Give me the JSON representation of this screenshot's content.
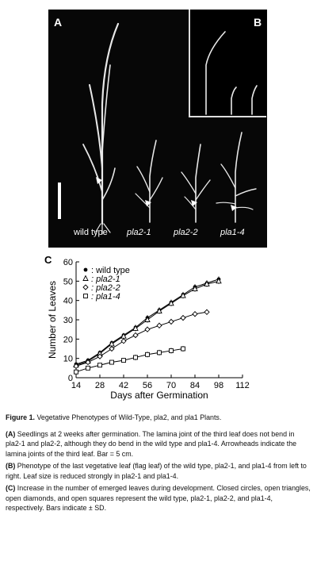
{
  "figure": {
    "panel_a_label": "A",
    "panel_b_label": "B",
    "panel_c_label": "C",
    "photo_labels": [
      "wild type",
      "pla2-1",
      "pla2-2",
      "pla1-4"
    ]
  },
  "chart_data": {
    "type": "line",
    "xlabel": "Days after Germination",
    "ylabel": "Number of Leaves",
    "xlim": [
      14,
      112
    ],
    "ylim": [
      0,
      60
    ],
    "xticks": [
      14,
      28,
      42,
      56,
      70,
      84,
      98,
      112
    ],
    "yticks": [
      0,
      10,
      20,
      30,
      40,
      50,
      60
    ],
    "legend_position": "top-left",
    "series": [
      {
        "name": "wild type",
        "marker": "filled-circle",
        "x": [
          14,
          21,
          28,
          35,
          42,
          49,
          56,
          63,
          70,
          77,
          84,
          91,
          98
        ],
        "y": [
          7,
          9,
          13,
          18,
          22,
          26,
          31,
          35,
          39,
          43,
          47,
          49,
          51
        ]
      },
      {
        "name": "pla2-1",
        "marker": "open-triangle",
        "x": [
          14,
          21,
          28,
          35,
          42,
          49,
          56,
          63,
          70,
          77,
          84,
          91,
          98
        ],
        "y": [
          6.5,
          8.5,
          12.5,
          17.5,
          21.5,
          25.5,
          30,
          34.5,
          38.5,
          42.5,
          46,
          48.5,
          50
        ]
      },
      {
        "name": "pla2-2",
        "marker": "open-diamond",
        "x": [
          14,
          21,
          28,
          35,
          42,
          49,
          56,
          63,
          70,
          77,
          84,
          91
        ],
        "y": [
          6,
          8,
          11,
          15,
          19,
          22,
          25,
          27,
          29,
          31,
          33,
          34
        ]
      },
      {
        "name": "pla1-4",
        "marker": "open-square",
        "x": [
          14,
          21,
          28,
          35,
          42,
          49,
          56,
          63,
          70,
          77
        ],
        "y": [
          3,
          5,
          6.5,
          8,
          9,
          10.5,
          12,
          13,
          14,
          15
        ]
      }
    ]
  },
  "caption": {
    "title_bold": "Figure 1.",
    "title_rest": "Vegetative Phenotypes of Wild-Type, pla2, and pla1 Plants.",
    "a_label": "(A)",
    "a_text": "Seedlings at 2 weeks after germination. The lamina joint of the third leaf does not bend in pla2-1 and pla2-2, although they do bend in the wild type and pla1-4. Arrowheads indicate the lamina joints of the third leaf. Bar = 5 cm.",
    "b_label": "(B)",
    "b_text": "Phenotype of the last vegetative leaf (flag leaf) of the wild type, pla2-1, and pla1-4 from left to right. Leaf size is reduced strongly in pla2-1 and pla1-4.",
    "c_label": "(C)",
    "c_text": "Increase in the number of emerged leaves during development. Closed circles, open triangles, open diamonds, and open squares represent the wild type, pla2-1, pla2-2, and pla1-4, respectively. Bars indicate ± SD."
  }
}
